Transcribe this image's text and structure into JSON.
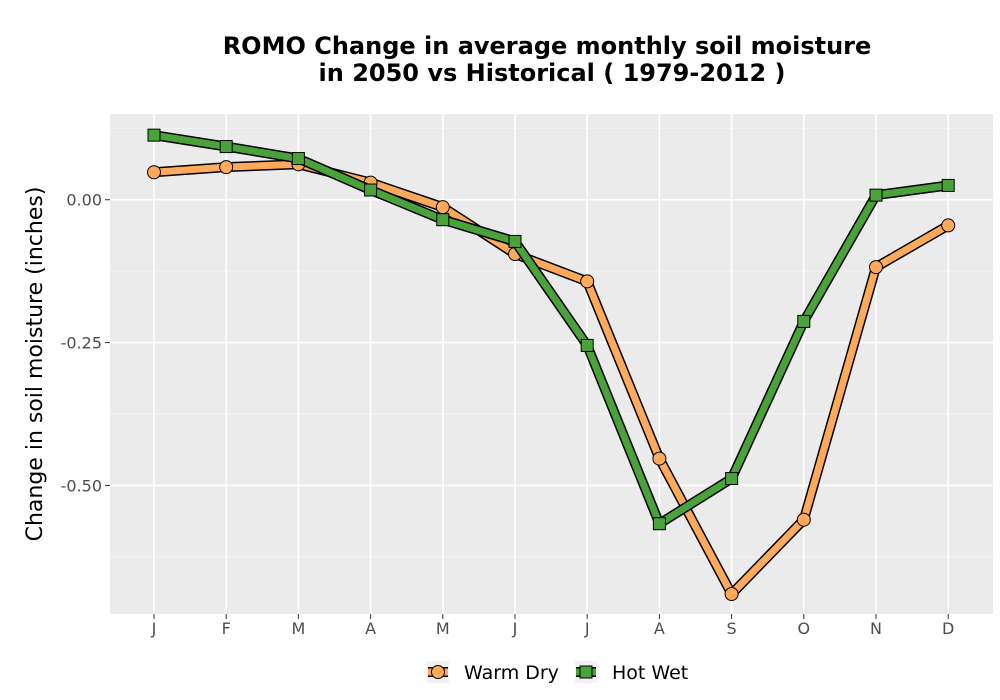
{
  "chart_data": {
    "type": "line",
    "title_lines": [
      "ROMO  Change in average monthly soil moisture",
      "in 2050 vs Historical ( 1979-2012 )"
    ],
    "xlabel": "",
    "ylabel": "Change in soil moisture (inches)",
    "categories": [
      "J",
      "F",
      "M",
      "A",
      "M",
      "J",
      "J",
      "A",
      "S",
      "O",
      "N",
      "D"
    ],
    "ylim": [
      -0.725,
      0.15
    ],
    "y_ticks": [
      0.0,
      -0.25,
      -0.5
    ],
    "y_tick_labels": [
      "0.00",
      "-0.25",
      "-0.50"
    ],
    "grid": true,
    "legend_position": "bottom",
    "series": [
      {
        "name": "Warm Dry",
        "color": "#ffaa5a",
        "marker": "circle",
        "values": [
          0.048,
          0.057,
          0.062,
          0.03,
          -0.013,
          -0.095,
          -0.143,
          -0.453,
          -0.69,
          -0.56,
          -0.118,
          -0.045
        ]
      },
      {
        "name": "Hot Wet",
        "color": "#4aa23a",
        "marker": "square",
        "values": [
          0.113,
          0.093,
          0.072,
          0.017,
          -0.035,
          -0.073,
          -0.255,
          -0.567,
          -0.488,
          -0.213,
          0.008,
          0.025
        ]
      }
    ]
  }
}
